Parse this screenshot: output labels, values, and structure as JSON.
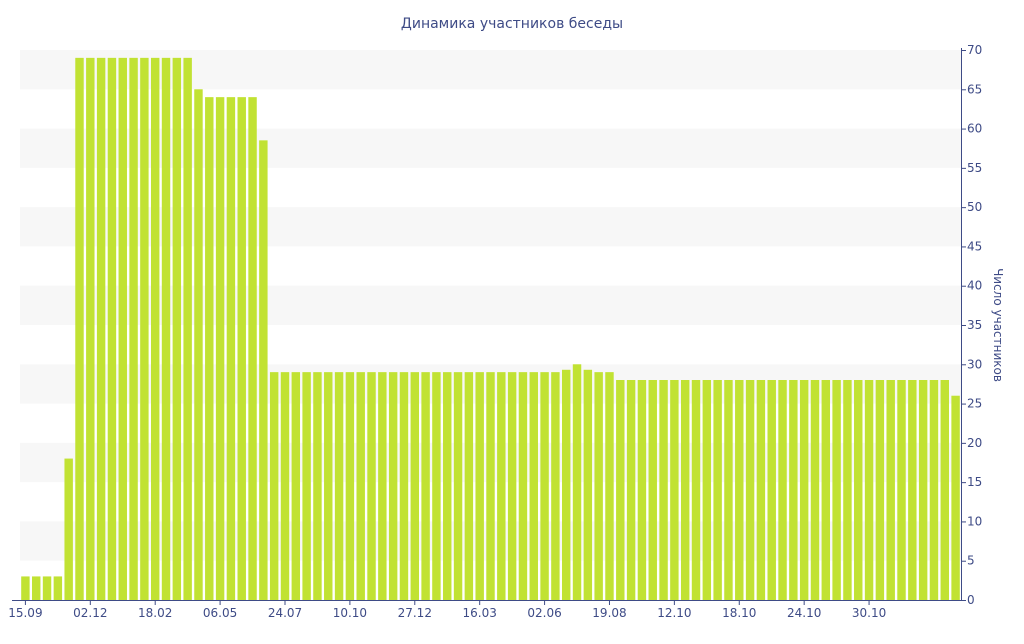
{
  "chart_data": {
    "type": "bar",
    "title": "Динамика участников беседы",
    "ylabel": "Число участников",
    "xlabel": "",
    "ylim": [
      0,
      70
    ],
    "yticks": [
      0,
      5,
      10,
      15,
      20,
      25,
      30,
      35,
      40,
      45,
      50,
      55,
      60,
      65,
      70
    ],
    "y_axis_side": "right",
    "grid": "alternating horizontal bands",
    "colors": {
      "bar": "#c1e233",
      "band": "#f7f7f7",
      "axis": "#3e4b86",
      "text": "#3e4b86"
    },
    "x_tick_labels": [
      {
        "label": "15.09",
        "index": 0
      },
      {
        "label": "02.12",
        "index": 6
      },
      {
        "label": "18.02",
        "index": 12
      },
      {
        "label": "06.05",
        "index": 18
      },
      {
        "label": "24.07",
        "index": 24
      },
      {
        "label": "10.10",
        "index": 30
      },
      {
        "label": "27.12",
        "index": 36
      },
      {
        "label": "16.03",
        "index": 42
      },
      {
        "label": "02.06",
        "index": 48
      },
      {
        "label": "19.08",
        "index": 54
      },
      {
        "label": "12.10",
        "index": 60
      },
      {
        "label": "18.10",
        "index": 66
      },
      {
        "label": "24.10",
        "index": 72
      },
      {
        "label": "30.10",
        "index": 78
      }
    ],
    "values": [
      3,
      3,
      3,
      3,
      18,
      69,
      69,
      69,
      69,
      69,
      69,
      69,
      69,
      69,
      69,
      69,
      65,
      64,
      64,
      64,
      64,
      64,
      58.5,
      29,
      29,
      29,
      29,
      29,
      29,
      29,
      29,
      29,
      29,
      29,
      29,
      29,
      29,
      29,
      29,
      29,
      29,
      29,
      29,
      29,
      29,
      29,
      29,
      29,
      29,
      29,
      29.3,
      30,
      29.3,
      29,
      29,
      28,
      28,
      28,
      28,
      28,
      28,
      28,
      28,
      28,
      28,
      28,
      28,
      28,
      28,
      28,
      28,
      28,
      28,
      28,
      28,
      28,
      28,
      28,
      28,
      28,
      28,
      28,
      28,
      28,
      28,
      28,
      26
    ]
  }
}
